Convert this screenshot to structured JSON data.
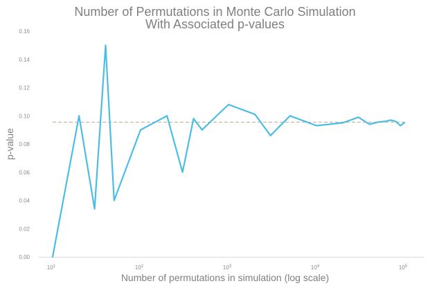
{
  "chart_data": {
    "type": "line",
    "title": "Number of Permutations in Monte Carlo Simulation",
    "subtitle": "With Associated p-values",
    "xlabel": "Number of permutations in simulation (log scale)",
    "ylabel": "p-value",
    "x_scale": "log",
    "xlim": [
      10,
      100000
    ],
    "ylim": [
      0,
      0.16
    ],
    "y_ticks": [
      "0.00",
      "0.02",
      "0.04",
      "0.06",
      "0.08",
      "0.10",
      "0.12",
      "0.14",
      "0.16"
    ],
    "x_ticks": [
      {
        "value": 10,
        "base": "10",
        "exp": "1"
      },
      {
        "value": 100,
        "base": "10",
        "exp": "2"
      },
      {
        "value": 1000,
        "base": "10",
        "exp": "3"
      },
      {
        "value": 10000,
        "base": "10",
        "exp": "4"
      },
      {
        "value": 100000,
        "base": "10",
        "exp": "5"
      }
    ],
    "grid": false,
    "legend": "none",
    "reference_line": {
      "y": 0.0955,
      "color": "#b5ab8c",
      "style": "dashed"
    },
    "series": [
      {
        "color": "#4bbde4",
        "x": [
          10,
          20,
          30,
          40,
          50,
          100,
          200,
          300,
          400,
          500,
          1000,
          2000,
          3000,
          5000,
          10000,
          20000,
          30000,
          40000,
          50000,
          60000,
          70000,
          80000,
          90000,
          100000
        ],
        "y": [
          0.0,
          0.1,
          0.034,
          0.15,
          0.04,
          0.09,
          0.1,
          0.06,
          0.098,
          0.09,
          0.108,
          0.101,
          0.086,
          0.1,
          0.093,
          0.095,
          0.099,
          0.094,
          0.0955,
          0.096,
          0.097,
          0.096,
          0.093,
          0.095
        ]
      }
    ]
  }
}
